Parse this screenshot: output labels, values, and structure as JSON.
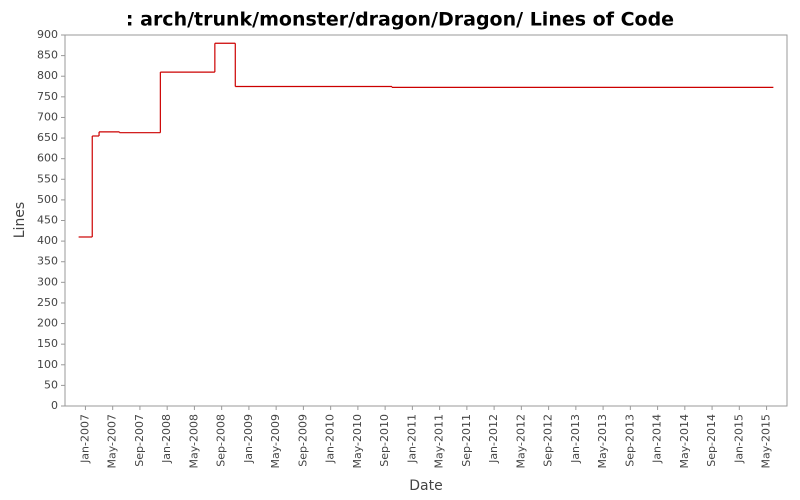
{
  "chart_data": {
    "type": "step-line",
    "title": ": arch/trunk/monster/dragon/Dragon/ Lines of Code",
    "x_label": "Date",
    "y_label": "Lines",
    "x": [
      "2006-12",
      "2007-02",
      "2007-03",
      "2007-06",
      "2007-12",
      "2008-08",
      "2008-11",
      "2010-10",
      "2015-06"
    ],
    "series": [
      {
        "name": "Lines",
        "color": "#cc0000",
        "values": [
          410,
          655,
          665,
          663,
          810,
          880,
          775,
          773,
          773
        ]
      }
    ],
    "xlim": [
      "2006-10",
      "2015-08"
    ],
    "xticks": [
      {
        "value": "2007-01",
        "label": "Jan-2007"
      },
      {
        "value": "2007-05",
        "label": "May-2007"
      },
      {
        "value": "2007-09",
        "label": "Sep-2007"
      },
      {
        "value": "2008-01",
        "label": "Jan-2008"
      },
      {
        "value": "2008-05",
        "label": "May-2008"
      },
      {
        "value": "2008-09",
        "label": "Sep-2008"
      },
      {
        "value": "2009-01",
        "label": "Jan-2009"
      },
      {
        "value": "2009-05",
        "label": "May-2009"
      },
      {
        "value": "2009-09",
        "label": "Sep-2009"
      },
      {
        "value": "2010-01",
        "label": "Jan-2010"
      },
      {
        "value": "2010-05",
        "label": "May-2010"
      },
      {
        "value": "2010-09",
        "label": "Sep-2010"
      },
      {
        "value": "2011-01",
        "label": "Jan-2011"
      },
      {
        "value": "2011-05",
        "label": "May-2011"
      },
      {
        "value": "2011-09",
        "label": "Sep-2011"
      },
      {
        "value": "2012-01",
        "label": "Jan-2012"
      },
      {
        "value": "2012-05",
        "label": "May-2012"
      },
      {
        "value": "2012-09",
        "label": "Sep-2012"
      },
      {
        "value": "2013-01",
        "label": "Jan-2013"
      },
      {
        "value": "2013-05",
        "label": "May-2013"
      },
      {
        "value": "2013-09",
        "label": "Sep-2013"
      },
      {
        "value": "2014-01",
        "label": "Jan-2014"
      },
      {
        "value": "2014-05",
        "label": "May-2014"
      },
      {
        "value": "2014-09",
        "label": "Sep-2014"
      },
      {
        "value": "2015-01",
        "label": "Jan-2015"
      },
      {
        "value": "2015-05",
        "label": "May-2015"
      }
    ],
    "ylim": [
      0,
      900
    ],
    "yticks": [
      0,
      50,
      100,
      150,
      200,
      250,
      300,
      350,
      400,
      450,
      500,
      550,
      600,
      650,
      700,
      750,
      800,
      850,
      900
    ],
    "grid": false
  }
}
